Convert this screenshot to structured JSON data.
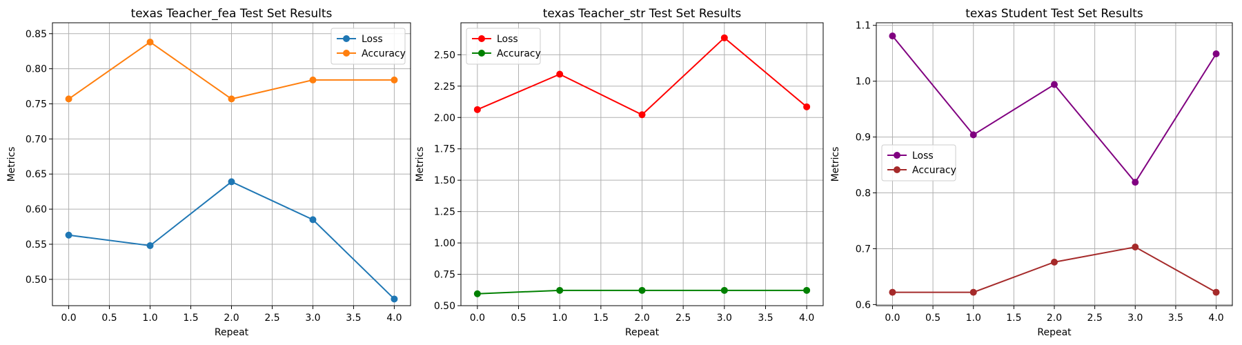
{
  "chart_data": [
    {
      "type": "line",
      "title": "texas Teacher_fea Test Set Results",
      "xlabel": "Repeat",
      "ylabel": "Metrics",
      "x": [
        0,
        1,
        2,
        3,
        4
      ],
      "xlim": [
        -0.2,
        4.2
      ],
      "ylim": [
        0.4625,
        0.8655
      ],
      "xticks": [
        "0.0",
        "0.5",
        "1.0",
        "1.5",
        "2.0",
        "2.5",
        "3.0",
        "3.5",
        "4.0"
      ],
      "yticks": [
        "0.50",
        "0.55",
        "0.60",
        "0.65",
        "0.70",
        "0.75",
        "0.80",
        "0.85"
      ],
      "grid": true,
      "legend_position": "top-right",
      "series": [
        {
          "name": "Loss",
          "color": "#1f77b4",
          "values": [
            0.563,
            0.548,
            0.639,
            0.585,
            0.472
          ]
        },
        {
          "name": "Accuracy",
          "color": "#ff7f0e",
          "values": [
            0.757,
            0.838,
            0.757,
            0.784,
            0.784
          ]
        }
      ]
    },
    {
      "type": "line",
      "title": "texas Teacher_str Test Set Results",
      "xlabel": "Repeat",
      "ylabel": "Metrics",
      "x": [
        0,
        1,
        2,
        3,
        4
      ],
      "xlim": [
        -0.2,
        4.2
      ],
      "ylim": [
        0.5,
        2.755
      ],
      "xticks": [
        "0.0",
        "0.5",
        "1.0",
        "1.5",
        "2.0",
        "2.5",
        "3.0",
        "3.5",
        "4.0"
      ],
      "yticks": [
        "0.50",
        "0.75",
        "1.00",
        "1.25",
        "1.50",
        "1.75",
        "2.00",
        "2.25",
        "2.50"
      ],
      "grid": true,
      "legend_position": "top-left",
      "series": [
        {
          "name": "Loss",
          "color": "#ff0000",
          "values": [
            2.063,
            2.345,
            2.022,
            2.635,
            2.085
          ]
        },
        {
          "name": "Accuracy",
          "color": "#008000",
          "values": [
            0.595,
            0.622,
            0.622,
            0.622,
            0.622
          ]
        }
      ]
    },
    {
      "type": "line",
      "title": "texas Student Test Set Results",
      "xlabel": "Repeat",
      "ylabel": "Metrics",
      "x": [
        0,
        1,
        2,
        3,
        4
      ],
      "xlim": [
        -0.2,
        4.2
      ],
      "ylim": [
        0.598,
        1.1046
      ],
      "xticks": [
        "0.0",
        "0.5",
        "1.0",
        "1.5",
        "2.0",
        "2.5",
        "3.0",
        "3.5",
        "4.0"
      ],
      "yticks": [
        "0.6",
        "0.7",
        "0.8",
        "0.9",
        "1.0",
        "1.1"
      ],
      "grid": true,
      "legend_position": "center-left",
      "series": [
        {
          "name": "Loss",
          "color": "#800080",
          "values": [
            1.081,
            0.904,
            0.994,
            0.819,
            1.049
          ]
        },
        {
          "name": "Accuracy",
          "color": "#a52a2a",
          "values": [
            0.622,
            0.622,
            0.676,
            0.703,
            0.622
          ]
        }
      ]
    }
  ]
}
